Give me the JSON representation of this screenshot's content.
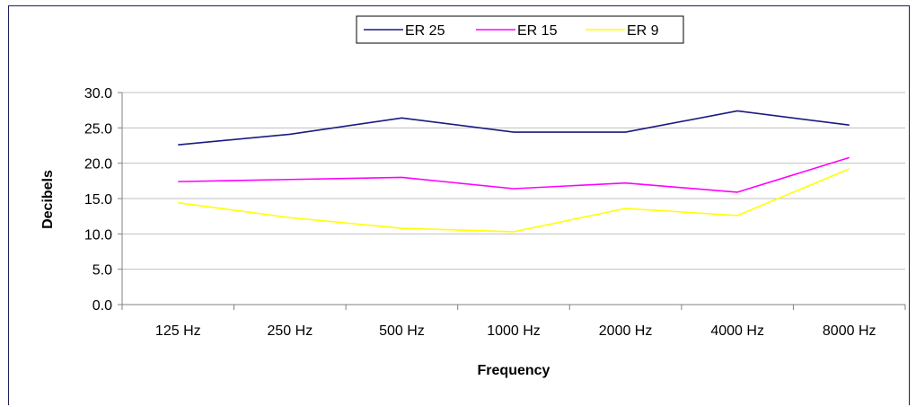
{
  "chart_data": {
    "type": "line",
    "categories": [
      "125 Hz",
      "250 Hz",
      "500 Hz",
      "1000 Hz",
      "2000 Hz",
      "4000 Hz",
      "8000 Hz"
    ],
    "series": [
      {
        "name": "ER 25",
        "color": "#1a1a80",
        "values": [
          22.6,
          24.1,
          26.4,
          24.4,
          24.4,
          27.4,
          25.4
        ]
      },
      {
        "name": "ER 15",
        "color": "#ff00ff",
        "values": [
          17.4,
          17.7,
          18.0,
          16.4,
          17.2,
          15.9,
          20.8
        ]
      },
      {
        "name": "ER 9",
        "color": "#ffff00",
        "values": [
          14.4,
          12.3,
          10.8,
          10.3,
          13.6,
          12.6,
          19.2
        ]
      }
    ],
    "xlabel": "Frequency",
    "ylabel": "Decibels",
    "ylim": [
      0,
      30
    ],
    "yticks": [
      "0.0",
      "5.0",
      "10.0",
      "15.0",
      "20.0",
      "25.0",
      "30.0"
    ],
    "ytick_values": [
      0,
      5,
      10,
      15,
      20,
      25,
      30
    ],
    "grid": true,
    "legend_position": "top-center"
  }
}
